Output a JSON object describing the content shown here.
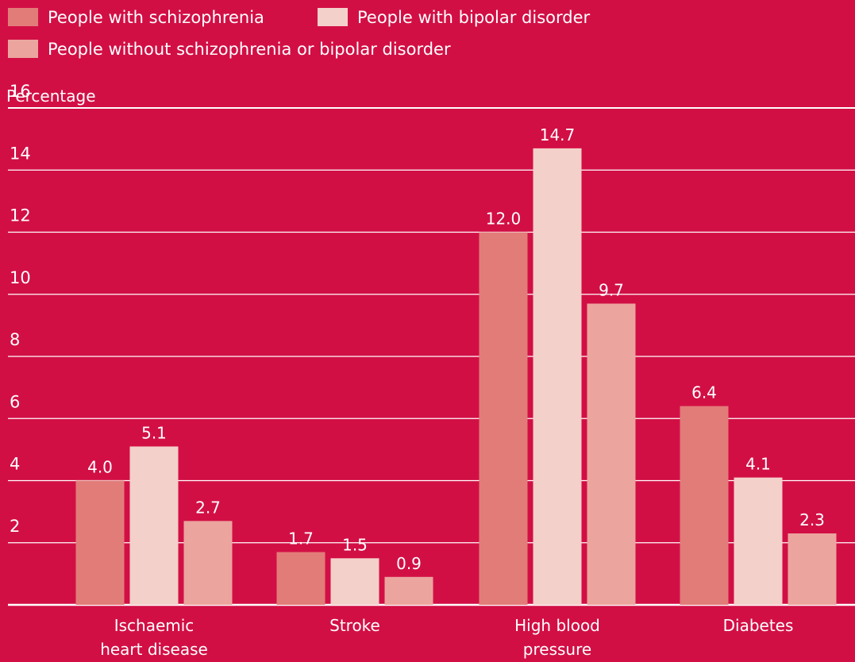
{
  "chart_data": {
    "type": "bar",
    "title": "",
    "xlabel": "",
    "ylabel": "Percentage",
    "ylim": [
      0,
      16
    ],
    "yticks": [
      2,
      4,
      6,
      8,
      10,
      12,
      14,
      16
    ],
    "grid": true,
    "legend_position": "top-left",
    "categories": [
      [
        "Ischaemic",
        "heart disease"
      ],
      [
        "Stroke"
      ],
      [
        "High blood",
        "pressure"
      ],
      [
        "Diabetes"
      ]
    ],
    "series": [
      {
        "name": "People with schizophrenia",
        "color": "#e27c79",
        "values": [
          4.0,
          1.7,
          12.0,
          6.4
        ],
        "labels": [
          "4.0",
          "1.7",
          "12.0",
          "6.4"
        ]
      },
      {
        "name": "People with bipolar disorder",
        "color": "#f3d0c9",
        "values": [
          5.1,
          1.5,
          14.7,
          4.1
        ],
        "labels": [
          "5.1",
          "1.5",
          "14.7",
          "4.1"
        ]
      },
      {
        "name": "People without schizophrenia or bipolar disorder",
        "color": "#eba59e",
        "values": [
          2.7,
          0.9,
          9.7,
          2.3
        ],
        "labels": [
          "2.7",
          "0.9",
          "9.7",
          "2.3"
        ]
      }
    ]
  },
  "colors": {
    "background": "#d20f45",
    "text": "#ffffff",
    "gridline": "#ffffff"
  }
}
